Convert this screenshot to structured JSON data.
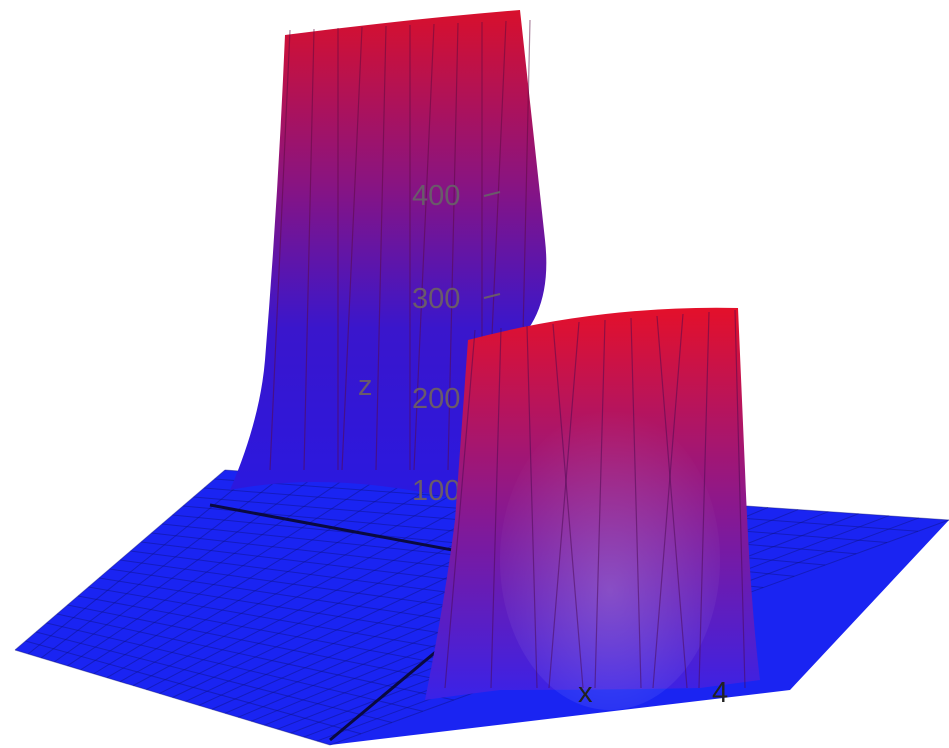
{
  "chart_data": {
    "type": "surface3d",
    "title": "",
    "xlabel": "x",
    "ylabel": "",
    "zlabel": "z",
    "z_ticks": [
      "100",
      "200",
      "300",
      "400"
    ],
    "x_ticks": [
      "4"
    ],
    "zlim": [
      0,
      500
    ],
    "grid": true,
    "peaks": [
      {
        "name": "",
        "location": "back-left",
        "height": 500
      },
      {
        "name": "",
        "location": "front-right",
        "height": 300
      }
    ],
    "colors": {
      "low": "#1f12e6",
      "high": "#e0102a",
      "floor": "#1a22f0"
    }
  }
}
